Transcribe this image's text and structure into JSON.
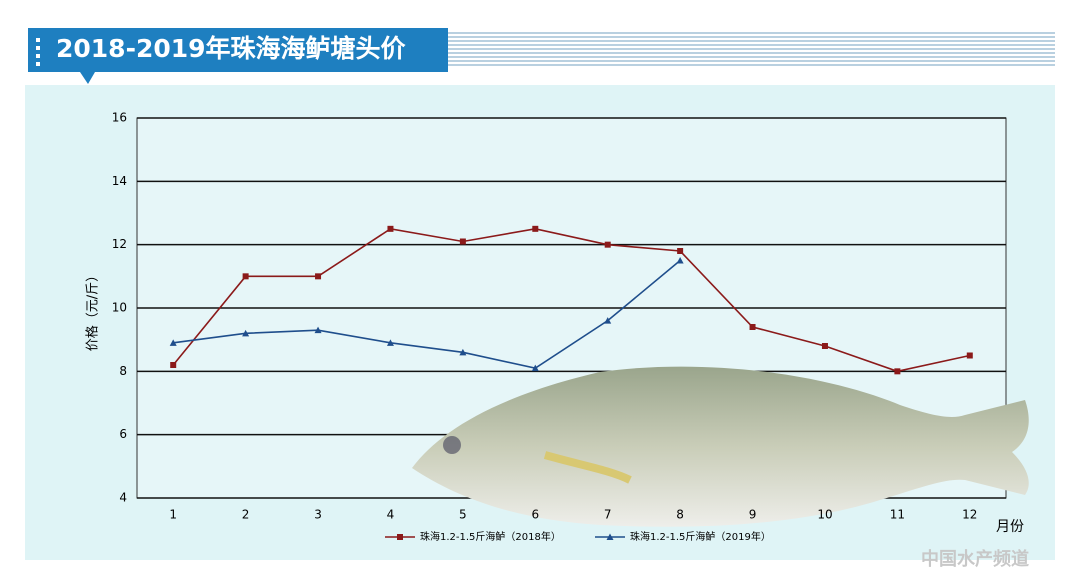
{
  "chart_data": {
    "type": "line",
    "title": "2018-2019年珠海海鲈塘头价",
    "y_label": "价格（元/斤）",
    "x_label": "月份",
    "categories": [
      "1",
      "2",
      "3",
      "4",
      "5",
      "6",
      "7",
      "8",
      "9",
      "10",
      "11",
      "12"
    ],
    "series": [
      {
        "name": "珠海1.2-1.5斤海鲈（2018年）",
        "color": "#8b1a1a",
        "marker": "square",
        "values": [
          8.2,
          11,
          11,
          12.5,
          12.1,
          12.5,
          12,
          11.8,
          9.4,
          8.8,
          8.0,
          8.5
        ]
      },
      {
        "name": "珠海1.2-1.5斤海鲈（2019年）",
        "color": "#1f4e8c",
        "marker": "triangle",
        "values": [
          8.9,
          9.2,
          9.3,
          8.9,
          8.6,
          8.1,
          9.6,
          11.5,
          null,
          null,
          null,
          null
        ]
      }
    ],
    "ylim": [
      4,
      16
    ],
    "yticks": [
      4,
      6,
      8,
      10,
      12,
      14,
      16
    ],
    "grid": true,
    "watermark": "中国水产频道"
  }
}
